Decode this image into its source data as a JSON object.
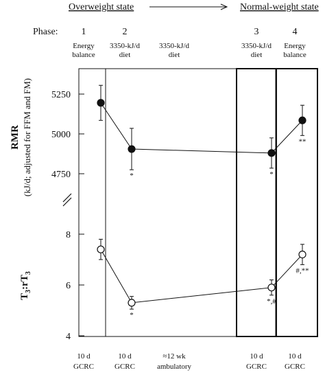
{
  "chart_data": {
    "type": "line",
    "states": {
      "overweight": "Overweight state",
      "normal": "Normal-weight state"
    },
    "phase_label": "Phase:",
    "phases": [
      {
        "number": "1",
        "desc1": "Energy",
        "desc2": "balance",
        "bottom1": "10 d",
        "bottom2": "GCRC"
      },
      {
        "number": "2",
        "desc1": "3350-kJ/d",
        "desc2": "diet",
        "bottom1": "10 d",
        "bottom2": "GCRC"
      },
      {
        "number": "",
        "desc1": "3350-kJ/d",
        "desc2": "diet",
        "bottom1": "≈12 wk",
        "bottom2": "ambulatory"
      },
      {
        "number": "3",
        "desc1": "3350-kJ/d",
        "desc2": "diet",
        "bottom1": "10 d",
        "bottom2": "GCRC"
      },
      {
        "number": "4",
        "desc1": "Energy",
        "desc2": "balance",
        "bottom1": "10 d",
        "bottom2": "GCRC"
      }
    ],
    "panels": [
      {
        "ylabel": "RMR",
        "ylabel_sub": "(kJ/d; adjusted for FFM and FM)",
        "ylim": [
          4750,
          5250
        ],
        "ticks": [
          "5250",
          "5000",
          "4750"
        ],
        "marker": "filled-circle",
        "values": [
          5195,
          4905,
          4880,
          5085
        ],
        "errors": [
          110,
          130,
          95,
          95
        ],
        "annotations": [
          "",
          "*",
          "*",
          "**"
        ]
      },
      {
        "ylabel": "T3:rT3",
        "ylim": [
          4,
          8
        ],
        "ticks": [
          "8",
          "6",
          "4"
        ],
        "marker": "open-circle",
        "values": [
          7.4,
          5.3,
          5.9,
          7.2
        ],
        "errors": [
          0.4,
          0.25,
          0.3,
          0.4
        ],
        "annotations": [
          "",
          "*",
          "*,#",
          "#,**"
        ]
      }
    ]
  }
}
